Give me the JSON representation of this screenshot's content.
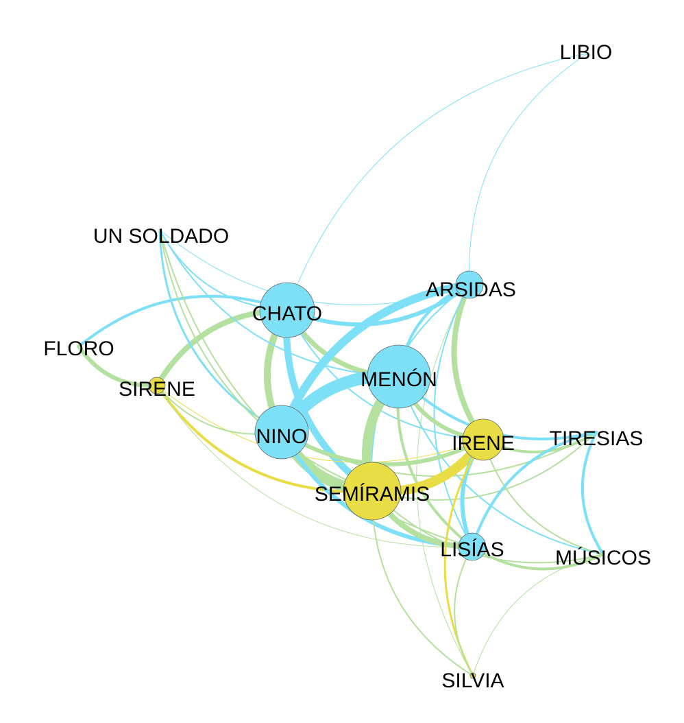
{
  "colors": {
    "blue": "#7ee0f7",
    "green": "#b4e0a0",
    "yellow": "#e8dd45",
    "text": "#000000"
  },
  "nodes": [
    {
      "id": "libio",
      "label": "LIBIO",
      "color": "blue"
    },
    {
      "id": "un_soldado",
      "label": "UN SOLDADO",
      "color": "blue"
    },
    {
      "id": "arsidas",
      "label": "ARSIDAS",
      "color": "blue"
    },
    {
      "id": "chato",
      "label": "CHATO",
      "color": "blue"
    },
    {
      "id": "floro",
      "label": "FLORO",
      "color": "green"
    },
    {
      "id": "menon",
      "label": "MENÓN",
      "color": "blue"
    },
    {
      "id": "sirene",
      "label": "SIRENE",
      "color": "yellow"
    },
    {
      "id": "nino",
      "label": "NINO",
      "color": "blue"
    },
    {
      "id": "irene",
      "label": "IRENE",
      "color": "yellow"
    },
    {
      "id": "tiresias",
      "label": "TIRESIAS",
      "color": "blue"
    },
    {
      "id": "semiramis",
      "label": "SEMÍRAMIS",
      "color": "yellow"
    },
    {
      "id": "lisias",
      "label": "LISÍAS",
      "color": "blue"
    },
    {
      "id": "musicos",
      "label": "MÚSICOS",
      "color": "blue"
    },
    {
      "id": "silvia",
      "label": "SILVIA",
      "color": "yellow"
    }
  ],
  "edges": [
    {
      "source": "libio",
      "target": "chato",
      "color": "blue",
      "weight": 1
    },
    {
      "source": "libio",
      "target": "arsidas",
      "color": "blue",
      "weight": 1
    },
    {
      "source": "chato",
      "target": "arsidas",
      "color": "blue",
      "weight": 6
    },
    {
      "source": "chato",
      "target": "menon",
      "color": "green",
      "weight": 7
    },
    {
      "source": "chato",
      "target": "nino",
      "color": "green",
      "weight": 10
    },
    {
      "source": "chato",
      "target": "semiramis",
      "color": "blue",
      "weight": 10
    },
    {
      "source": "chato",
      "target": "floro",
      "color": "blue",
      "weight": 4
    },
    {
      "source": "chato",
      "target": "sirene",
      "color": "green",
      "weight": 8
    },
    {
      "source": "chato",
      "target": "irene",
      "color": "blue",
      "weight": 2
    },
    {
      "source": "un_soldado",
      "target": "chato",
      "color": "blue",
      "weight": 2
    },
    {
      "source": "un_soldado",
      "target": "arsidas",
      "color": "blue",
      "weight": 1
    },
    {
      "source": "un_soldado",
      "target": "nino",
      "color": "blue",
      "weight": 3
    },
    {
      "source": "un_soldado",
      "target": "semiramis",
      "color": "green",
      "weight": 2
    },
    {
      "source": "un_soldado",
      "target": "menon",
      "color": "blue",
      "weight": 2
    },
    {
      "source": "un_soldado",
      "target": "lisias",
      "color": "green",
      "weight": 2
    },
    {
      "source": "floro",
      "target": "sirene",
      "color": "green",
      "weight": 6
    },
    {
      "source": "arsidas",
      "target": "nino",
      "color": "blue",
      "weight": 12
    },
    {
      "source": "arsidas",
      "target": "menon",
      "color": "blue",
      "weight": 4
    },
    {
      "source": "arsidas",
      "target": "irene",
      "color": "green",
      "weight": 8
    },
    {
      "source": "arsidas",
      "target": "semiramis",
      "color": "blue",
      "weight": 2
    },
    {
      "source": "arsidas",
      "target": "silvia",
      "color": "green",
      "weight": 1
    },
    {
      "source": "arsidas",
      "target": "lisias",
      "color": "blue",
      "weight": 2
    },
    {
      "source": "menon",
      "target": "nino",
      "color": "blue",
      "weight": 18
    },
    {
      "source": "menon",
      "target": "semiramis",
      "color": "green",
      "weight": 14
    },
    {
      "source": "menon",
      "target": "irene",
      "color": "green",
      "weight": 6
    },
    {
      "source": "menon",
      "target": "tiresias",
      "color": "blue",
      "weight": 4
    },
    {
      "source": "menon",
      "target": "lisias",
      "color": "green",
      "weight": 4
    },
    {
      "source": "menon",
      "target": "musicos",
      "color": "blue",
      "weight": 2
    },
    {
      "source": "sirene",
      "target": "semiramis",
      "color": "yellow",
      "weight": 4
    },
    {
      "source": "sirene",
      "target": "irene",
      "color": "yellow",
      "weight": 1
    },
    {
      "source": "sirene",
      "target": "lisias",
      "color": "green",
      "weight": 1
    },
    {
      "source": "sirene",
      "target": "nino",
      "color": "green",
      "weight": 2
    },
    {
      "source": "nino",
      "target": "semiramis",
      "color": "green",
      "weight": 16
    },
    {
      "source": "nino",
      "target": "irene",
      "color": "green",
      "weight": 6
    },
    {
      "source": "nino",
      "target": "lisias",
      "color": "blue",
      "weight": 6
    },
    {
      "source": "nino",
      "target": "tiresias",
      "color": "green",
      "weight": 2
    },
    {
      "source": "semiramis",
      "target": "irene",
      "color": "yellow",
      "weight": 14
    },
    {
      "source": "semiramis",
      "target": "lisias",
      "color": "green",
      "weight": 8
    },
    {
      "source": "semiramis",
      "target": "tiresias",
      "color": "green",
      "weight": 2
    },
    {
      "source": "semiramis",
      "target": "musicos",
      "color": "green",
      "weight": 2
    },
    {
      "source": "semiramis",
      "target": "silvia",
      "color": "green",
      "weight": 2
    },
    {
      "source": "irene",
      "target": "lisias",
      "color": "blue",
      "weight": 6
    },
    {
      "source": "irene",
      "target": "tiresias",
      "color": "green",
      "weight": 4
    },
    {
      "source": "irene",
      "target": "silvia",
      "color": "yellow",
      "weight": 3
    },
    {
      "source": "irene",
      "target": "musicos",
      "color": "green",
      "weight": 2
    },
    {
      "source": "tiresias",
      "target": "lisias",
      "color": "blue",
      "weight": 4
    },
    {
      "source": "tiresias",
      "target": "musicos",
      "color": "blue",
      "weight": 4
    },
    {
      "source": "lisias",
      "target": "musicos",
      "color": "green",
      "weight": 4
    },
    {
      "source": "lisias",
      "target": "silvia",
      "color": "green",
      "weight": 2
    },
    {
      "source": "musicos",
      "target": "silvia",
      "color": "green",
      "weight": 1
    }
  ]
}
